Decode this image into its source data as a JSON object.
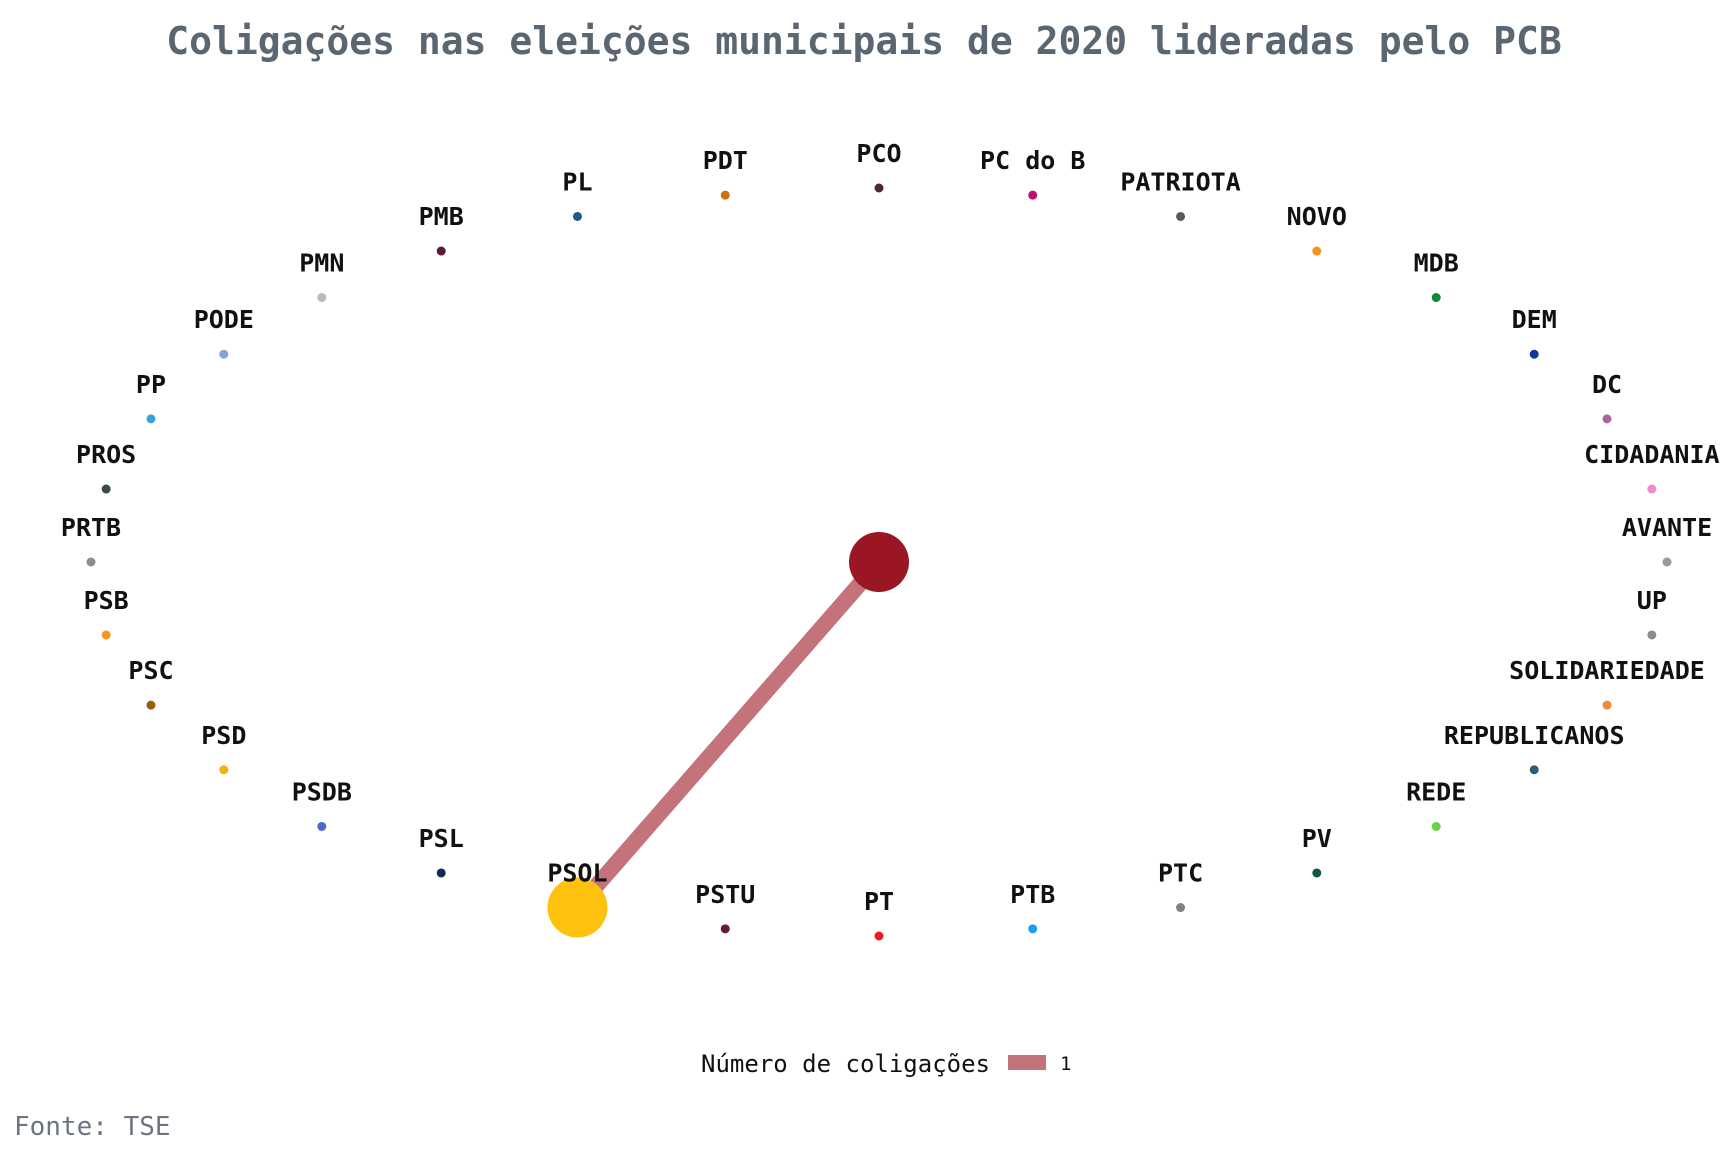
{
  "title": "Coligações nas eleições municipais de 2020 lideradas pelo PCB",
  "caption": "Fonte: TSE",
  "legend": {
    "title": "Número de coligações",
    "value": "1",
    "color": "#c4737b"
  },
  "chart_data": {
    "type": "network",
    "center": {
      "name": "PCB",
      "color": "#9b1624"
    },
    "edges": [
      {
        "from": "PCB",
        "to": "PSOL",
        "count": 1
      }
    ],
    "nodes": [
      {
        "name": "PCO",
        "color": "#4a2a2a"
      },
      {
        "name": "PC do B",
        "color": "#c0106c"
      },
      {
        "name": "PATRIOTA",
        "color": "#595959"
      },
      {
        "name": "NOVO",
        "color": "#f5941e"
      },
      {
        "name": "MDB",
        "color": "#0f8a3c"
      },
      {
        "name": "DEM",
        "color": "#10389c"
      },
      {
        "name": "DC",
        "color": "#a5689a"
      },
      {
        "name": "CIDADANIA",
        "color": "#ec8cc8"
      },
      {
        "name": "AVANTE",
        "color": "#999999"
      },
      {
        "name": "UP",
        "color": "#8c8c8c"
      },
      {
        "name": "SOLIDARIEDADE",
        "color": "#ef8a3c"
      },
      {
        "name": "REPUBLICANOS",
        "color": "#2f5a78"
      },
      {
        "name": "REDE",
        "color": "#6ad14a"
      },
      {
        "name": "PV",
        "color": "#0f5a3c"
      },
      {
        "name": "PTC",
        "color": "#85807a"
      },
      {
        "name": "PTB",
        "color": "#1b9ef0"
      },
      {
        "name": "PT",
        "color": "#ee1c1c"
      },
      {
        "name": "PSTU",
        "color": "#6a1a2a"
      },
      {
        "name": "PSOL",
        "color": "#fec10e",
        "partner": true
      },
      {
        "name": "PSL",
        "color": "#0c2a5a"
      },
      {
        "name": "PSDB",
        "color": "#4a6ad0"
      },
      {
        "name": "PSD",
        "color": "#f2b20e"
      },
      {
        "name": "PSC",
        "color": "#a05a0c"
      },
      {
        "name": "PSB",
        "color": "#f5941e"
      },
      {
        "name": "PRTB",
        "color": "#8c8c8c"
      },
      {
        "name": "PROS",
        "color": "#3a4a44"
      },
      {
        "name": "PP",
        "color": "#3aa0e0"
      },
      {
        "name": "PODE",
        "color": "#7fa4dc"
      },
      {
        "name": "PMN",
        "color": "#bbbbbb"
      },
      {
        "name": "PMB",
        "color": "#5a1a3a"
      },
      {
        "name": "PL",
        "color": "#1f5a84"
      },
      {
        "name": "PDT",
        "color": "#d0700c"
      }
    ]
  }
}
